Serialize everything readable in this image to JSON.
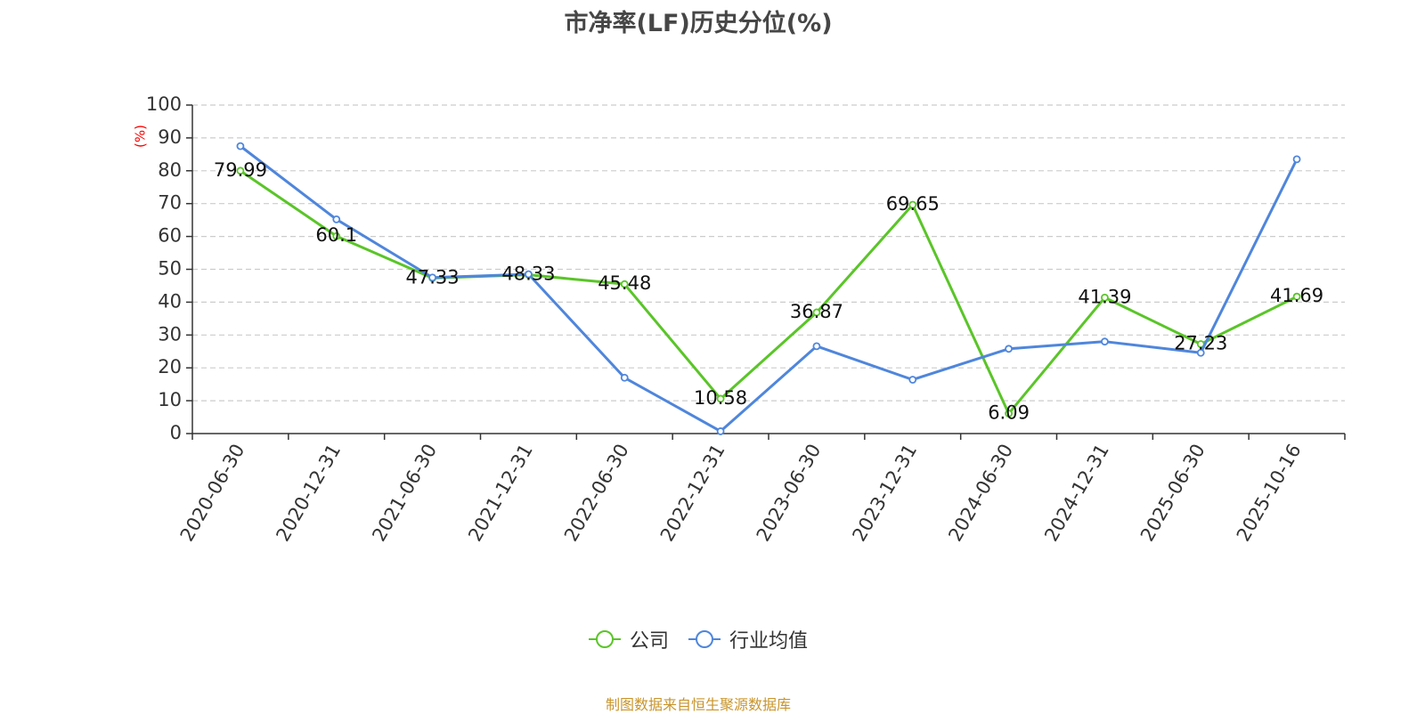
{
  "title": "市净率(LF)历史分位(%)",
  "source": "制图数据来自恒生聚源数据库",
  "chart_data": {
    "type": "line",
    "title": "市净率(LF)历史分位(%)",
    "xlabel": "",
    "ylabel": "(%)",
    "ylim": [
      0,
      100
    ],
    "yticks": [
      0,
      10,
      20,
      30,
      40,
      50,
      60,
      70,
      80,
      90,
      100
    ],
    "grid": "horizontal-dashed",
    "legend_position": "bottom-center",
    "categories": [
      "2020-06-30",
      "2020-12-31",
      "2021-06-30",
      "2021-12-31",
      "2022-06-30",
      "2022-12-31",
      "2023-06-30",
      "2023-12-31",
      "2024-06-30",
      "2024-12-31",
      "2025-06-30",
      "2025-10-16"
    ],
    "series": [
      {
        "name": "公司",
        "color": "#5ac528",
        "show_labels": true,
        "values": [
          79.99,
          60.1,
          47.33,
          48.33,
          45.48,
          10.58,
          36.87,
          69.65,
          6.09,
          41.39,
          27.23,
          41.69
        ]
      },
      {
        "name": "行业均值",
        "color": "#4f86dc",
        "show_labels": false,
        "values": [
          87.5,
          65.2,
          47.5,
          48.5,
          17.0,
          0.7,
          26.6,
          16.4,
          25.8,
          28.0,
          24.6,
          83.5
        ]
      }
    ]
  }
}
